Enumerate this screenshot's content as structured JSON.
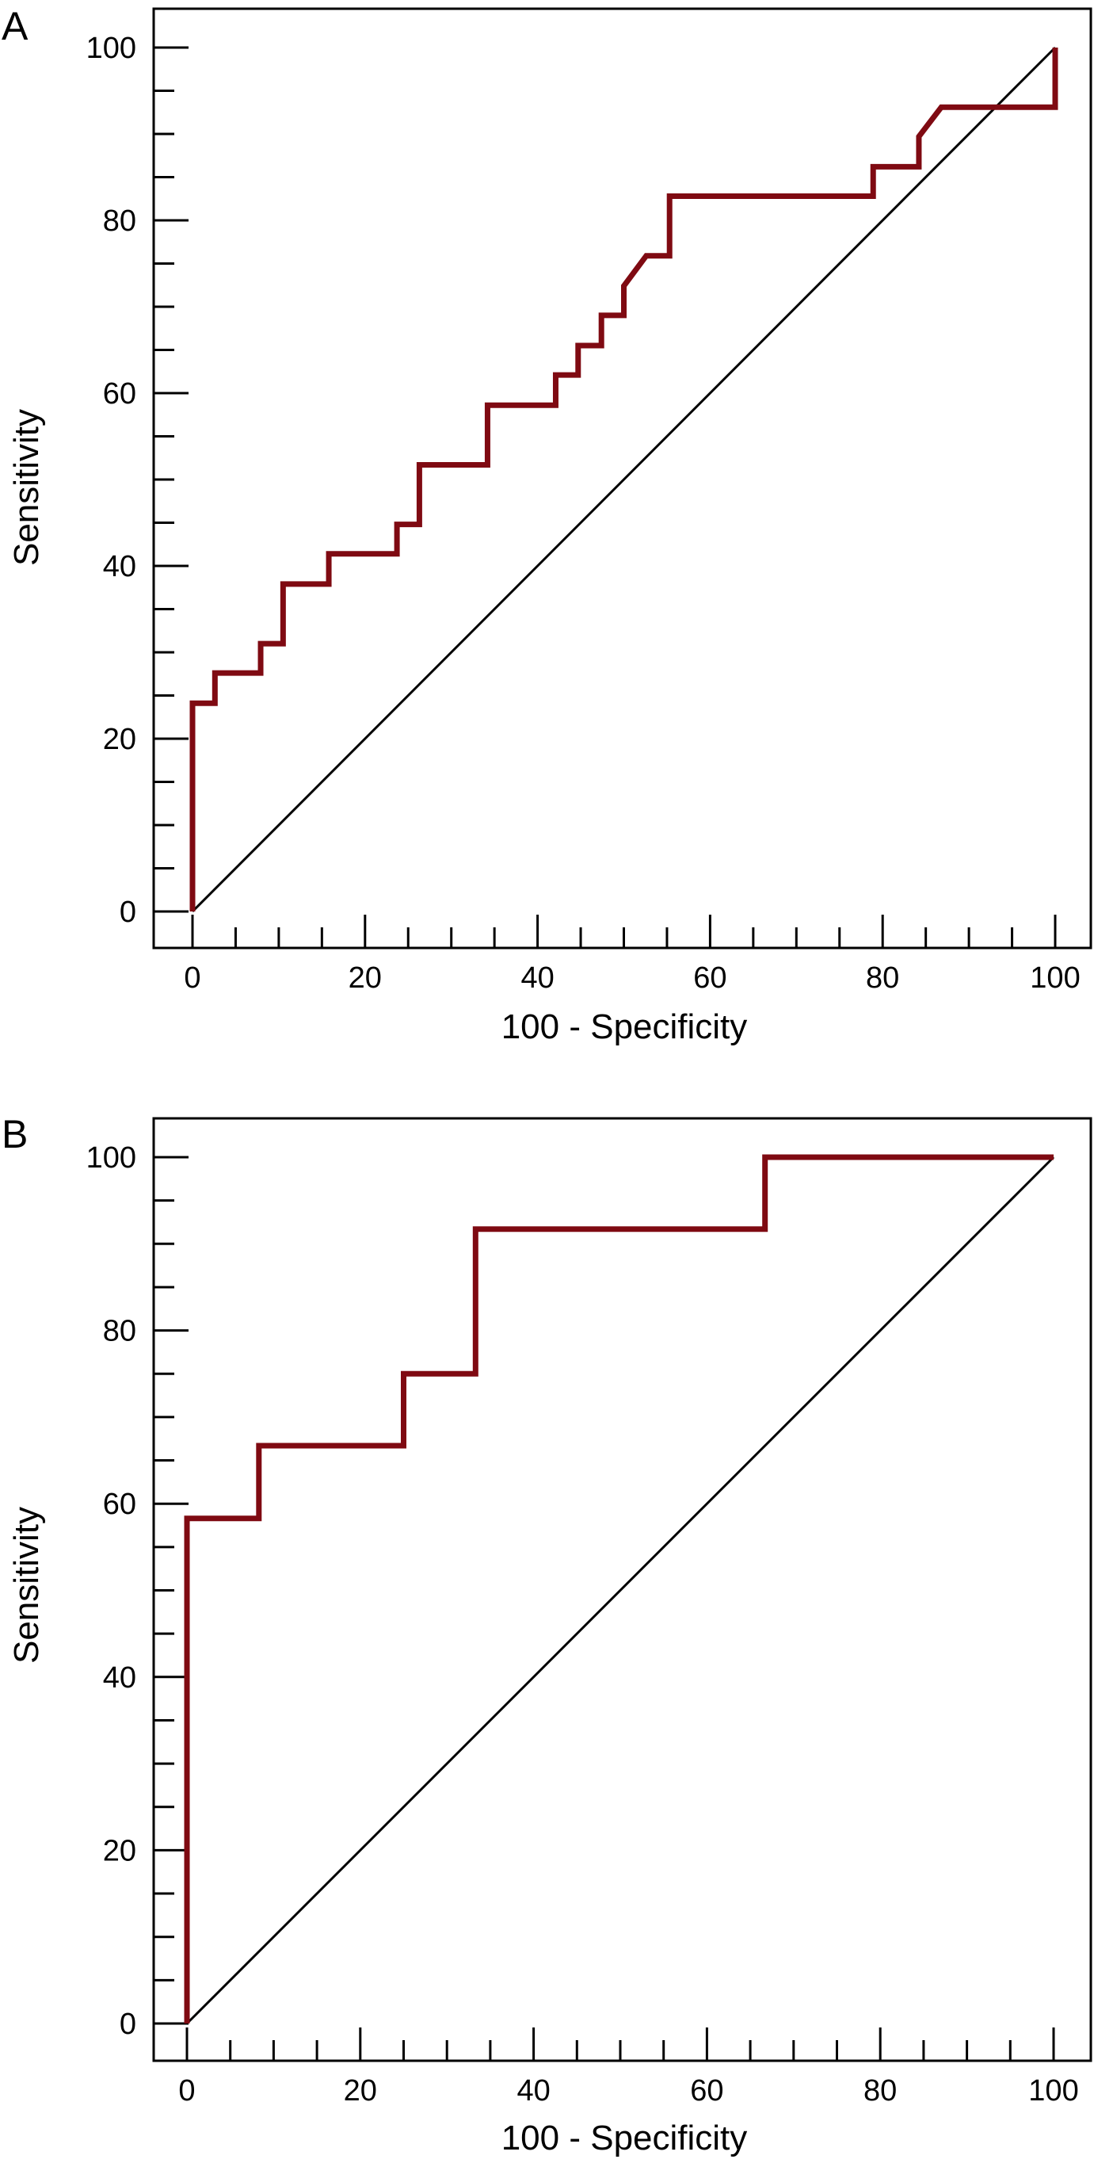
{
  "chart_data": [
    {
      "type": "line",
      "panel_label": "A",
      "xlabel": "100 - Specificity",
      "ylabel": "Sensitivity",
      "xlim": [
        0,
        100
      ],
      "ylim": [
        0,
        100
      ],
      "xticks": [
        0,
        20,
        40,
        60,
        80,
        100
      ],
      "yticks": [
        0,
        20,
        40,
        60,
        80,
        100
      ],
      "grid": false,
      "colors": {
        "roc": "#7f0a12",
        "reference": "#000000"
      },
      "series": [
        {
          "x": [
            0,
            0,
            2.6,
            2.6,
            7.9,
            7.9,
            10.5,
            10.5,
            15.8,
            15.8,
            23.7,
            23.7,
            26.3,
            26.3,
            34.2,
            34.2,
            42.1,
            42.1,
            44.7,
            44.7,
            47.4,
            47.4,
            50,
            50,
            52.6,
            55.3,
            55.3,
            78.9,
            78.9,
            84.2,
            84.2,
            86.8,
            100,
            100
          ],
          "y": [
            0,
            24.1,
            24.1,
            27.6,
            27.6,
            31.0,
            31.0,
            37.9,
            37.9,
            41.4,
            41.4,
            44.8,
            44.8,
            51.7,
            51.7,
            58.6,
            58.6,
            62.1,
            62.1,
            65.5,
            65.5,
            69.0,
            69.0,
            72.4,
            75.9,
            75.9,
            82.8,
            82.8,
            86.2,
            86.2,
            89.7,
            93.1,
            93.1,
            100
          ]
        },
        {
          "x": [
            0,
            100
          ],
          "y": [
            0,
            100
          ]
        }
      ]
    },
    {
      "type": "line",
      "panel_label": "B",
      "xlabel": "100 - Specificity",
      "ylabel": "Sensitivity",
      "xlim": [
        0,
        100
      ],
      "ylim": [
        0,
        100
      ],
      "xticks": [
        0,
        20,
        40,
        60,
        80,
        100
      ],
      "yticks": [
        0,
        20,
        40,
        60,
        80,
        100
      ],
      "grid": false,
      "colors": {
        "roc": "#7f0a12",
        "reference": "#000000"
      },
      "series": [
        {
          "x": [
            0,
            0,
            8.3,
            8.3,
            25,
            25,
            33.3,
            33.3,
            66.7,
            66.7,
            100
          ],
          "y": [
            0,
            58.3,
            58.3,
            66.7,
            66.7,
            75,
            75,
            91.7,
            91.7,
            100,
            100
          ]
        },
        {
          "x": [
            0,
            100
          ],
          "y": [
            0,
            100
          ]
        }
      ]
    }
  ]
}
